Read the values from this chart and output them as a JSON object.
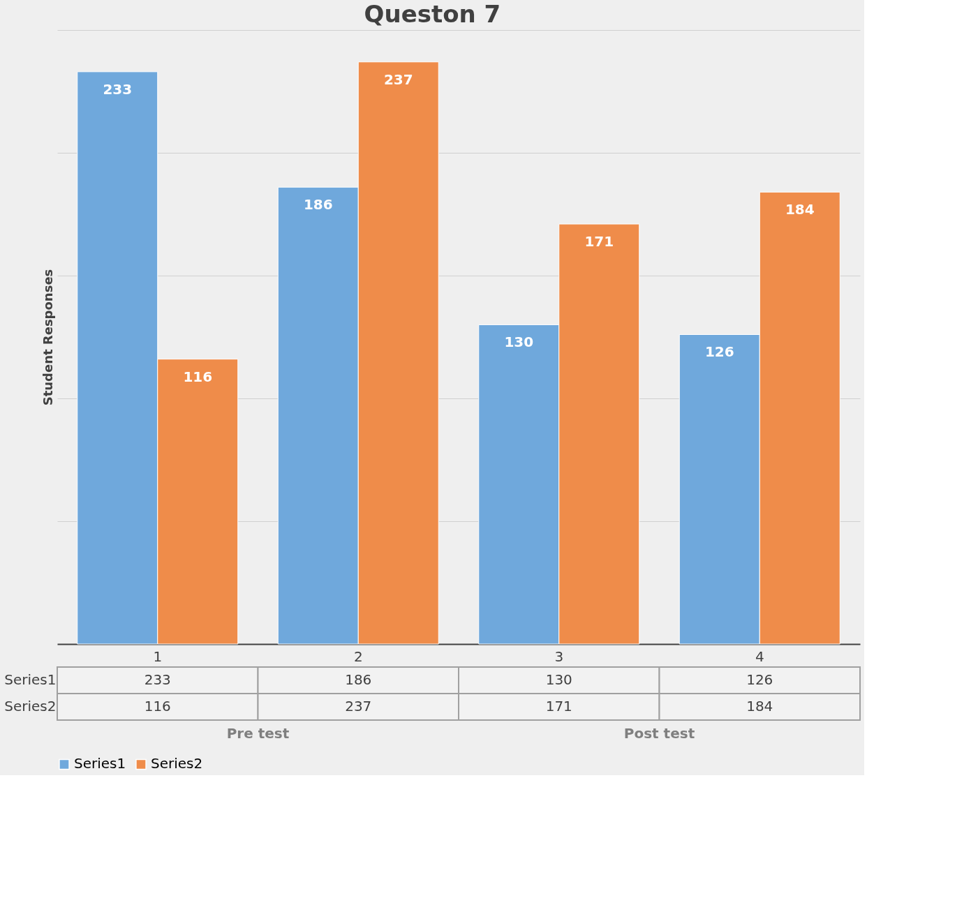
{
  "chart_data": {
    "type": "bar",
    "title": "Queston 7",
    "ylabel": "Student Responses",
    "categories": [
      "1",
      "2",
      "3",
      "4"
    ],
    "series": [
      {
        "name": "Series1",
        "color": "#6fa8dc",
        "values": [
          233,
          186,
          130,
          126
        ],
        "value_labels": [
          "233",
          "186",
          "130",
          "126"
        ]
      },
      {
        "name": "Series2",
        "color": "#ef8c4a",
        "values": [
          116,
          237,
          171,
          184
        ],
        "value_labels": [
          "116",
          "237",
          "171",
          "184"
        ]
      }
    ],
    "ylim": [
      0,
      250
    ],
    "yticks": [
      {
        "value": 0,
        "label": null
      },
      {
        "value": 50,
        "label": null
      },
      {
        "value": 100,
        "label": null
      },
      {
        "value": 150,
        "label": null
      },
      {
        "value": 200,
        "label": null
      },
      {
        "value": 250,
        "label": null
      }
    ],
    "tick_labels": "x",
    "grid": "y",
    "legend": "bottom",
    "annotations": [
      "233",
      "186",
      "130",
      "126",
      "116",
      "237",
      "171",
      "184",
      "Pre test",
      "Post test"
    ]
  }
}
